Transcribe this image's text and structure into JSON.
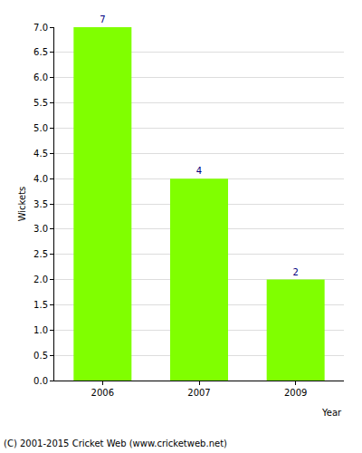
{
  "chart_data": {
    "type": "bar",
    "y_label": "Wickets",
    "x_label": "Year",
    "annotations": [
      "(C) 2001-2015 Cricket Web (www.cricketweb.net)"
    ],
    "categories": [
      "2006",
      "2007",
      "2009"
    ],
    "values": [
      7,
      4,
      2
    ],
    "color": "#80ff00",
    "data_labels": true,
    "ylim": [
      0,
      7
    ],
    "yticks": [
      {
        "value": 0,
        "label": "0.0"
      },
      {
        "value": 0.5,
        "label": "0.5"
      },
      {
        "value": 1,
        "label": "1.0"
      },
      {
        "value": 1.5,
        "label": "1.5"
      },
      {
        "value": 2,
        "label": "2.0"
      },
      {
        "value": 2.5,
        "label": "2.5"
      },
      {
        "value": 3,
        "label": "3.0"
      },
      {
        "value": 3.5,
        "label": "3.5"
      },
      {
        "value": 4,
        "label": "4.0"
      },
      {
        "value": 4.5,
        "label": "4.5"
      },
      {
        "value": 5,
        "label": "5.0"
      },
      {
        "value": 5.5,
        "label": "5.5"
      },
      {
        "value": 6,
        "label": "6.0"
      },
      {
        "value": 6.5,
        "label": "6.5"
      },
      {
        "value": 7,
        "label": "7.0"
      }
    ],
    "grid": true
  }
}
